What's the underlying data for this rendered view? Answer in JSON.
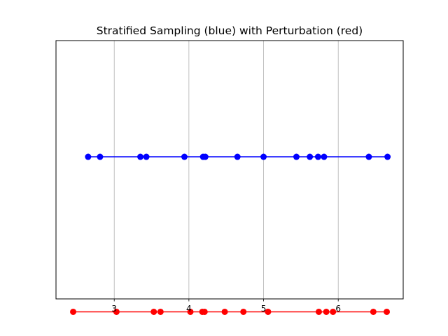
{
  "chart_data": {
    "type": "scatter",
    "title": "Stratified Sampling (blue) with Perturbation (red)",
    "xlabel": "",
    "ylabel": "",
    "xlim": [
      2.22,
      6.87
    ],
    "ylim": [
      -0.5,
      1.5
    ],
    "xticks": [
      3,
      4,
      5,
      6
    ],
    "xtick_labels": [
      "3",
      "4",
      "5",
      "6"
    ],
    "grid": "x-axis only",
    "legend": "none",
    "series": [
      {
        "color": "#0000ff",
        "y": 0.6,
        "x": [
          2.65,
          2.81,
          3.35,
          3.43,
          3.94,
          4.19,
          4.22,
          4.65,
          5.0,
          5.44,
          5.62,
          5.73,
          5.81,
          6.41,
          6.66
        ]
      },
      {
        "color": "#ff0000",
        "y": -0.6,
        "x": [
          2.45,
          3.03,
          3.53,
          3.62,
          4.02,
          4.18,
          4.21,
          4.48,
          4.73,
          5.06,
          5.74,
          5.84,
          5.93,
          6.47,
          6.65
        ]
      }
    ]
  }
}
